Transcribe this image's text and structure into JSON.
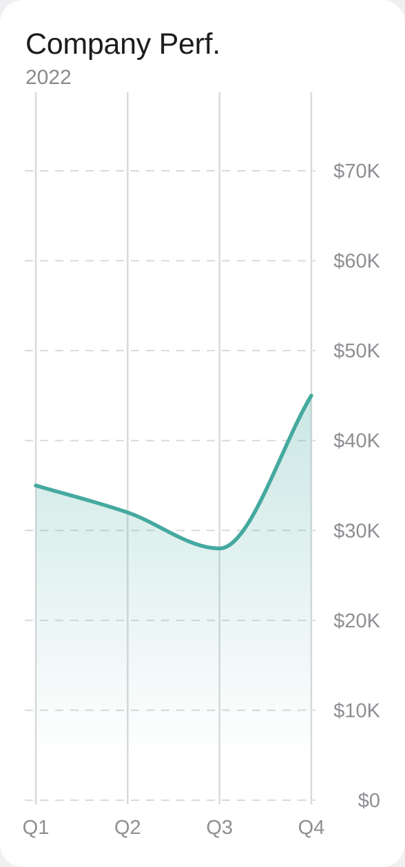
{
  "card": {
    "title": "Company Perf.",
    "subtitle": "2022"
  },
  "colors": {
    "line": "#45a99f",
    "area_top": "#45a99f",
    "gridline": "#d9d9dc",
    "axis_text": "#8e8e93"
  },
  "chart_data": {
    "type": "area",
    "title": "Company Perf.",
    "subtitle": "2022",
    "categories": [
      "Q1",
      "Q2",
      "Q3",
      "Q4"
    ],
    "values": [
      35000,
      32000,
      28000,
      45000
    ],
    "y_ticks": [
      0,
      10000,
      20000,
      30000,
      40000,
      50000,
      60000,
      70000
    ],
    "y_tick_labels": [
      "$0",
      "$10K",
      "$20K",
      "$30K",
      "$40K",
      "$50K",
      "$60K",
      "$70K"
    ],
    "ylim": [
      0,
      70000
    ],
    "y_axis_position": "right",
    "grid": {
      "vertical": true,
      "horizontal_dashed": true
    },
    "curve": "smooth",
    "legend": "none"
  }
}
